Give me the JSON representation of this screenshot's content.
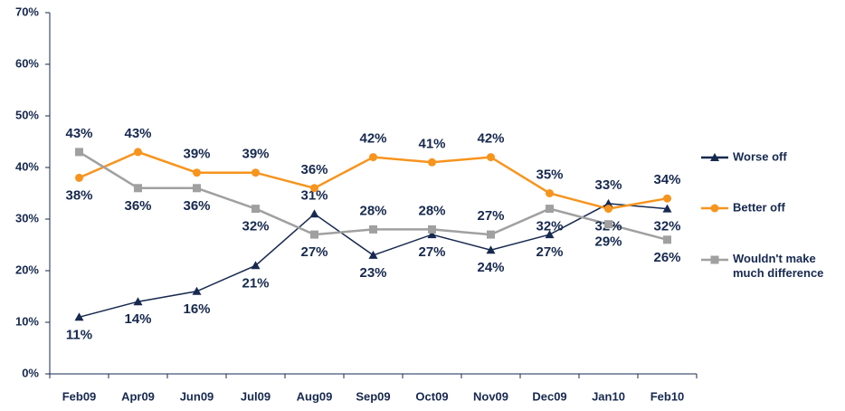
{
  "chart_data": {
    "type": "line",
    "categories": [
      "Feb09",
      "Apr09",
      "Jun09",
      "Jul09",
      "Aug09",
      "Sep09",
      "Oct09",
      "Nov09",
      "Dec09",
      "Jan10",
      "Feb10"
    ],
    "series": [
      {
        "name": "Worse off",
        "color": "#17294f",
        "marker": "triangle",
        "values": [
          11,
          14,
          16,
          21,
          31,
          23,
          27,
          24,
          27,
          33,
          32
        ],
        "value_labels": [
          "11%",
          "14%",
          "16%",
          "21%",
          "31%",
          "23%",
          "27%",
          "24%",
          "27%",
          "33%",
          "32%"
        ]
      },
      {
        "name": "Better off",
        "color": "#f7941d",
        "marker": "circle",
        "values": [
          38,
          43,
          39,
          39,
          36,
          42,
          41,
          42,
          35,
          32,
          34
        ],
        "value_labels": [
          "38%",
          "43%",
          "39%",
          "39%",
          "36%",
          "42%",
          "41%",
          "42%",
          "35%",
          "32%",
          "34%"
        ]
      },
      {
        "name": "Wouldn't make much difference",
        "color": "#a0a0a0",
        "marker": "square",
        "values": [
          43,
          36,
          36,
          32,
          27,
          28,
          28,
          27,
          32,
          29,
          26
        ],
        "value_labels": [
          "43%",
          "36%",
          "36%",
          "32%",
          "27%",
          "28%",
          "28%",
          "27%",
          "32%",
          "29%",
          "26%"
        ]
      }
    ],
    "ylim": [
      0,
      70
    ],
    "yticks": [
      {
        "value": 0,
        "label": "0%"
      },
      {
        "value": 10,
        "label": "10%"
      },
      {
        "value": 20,
        "label": "20%"
      },
      {
        "value": 30,
        "label": "30%"
      },
      {
        "value": 40,
        "label": "40%"
      },
      {
        "value": 50,
        "label": "50%"
      },
      {
        "value": 60,
        "label": "60%"
      },
      {
        "value": 70,
        "label": "70%"
      }
    ],
    "grid": false,
    "legend": "right"
  }
}
